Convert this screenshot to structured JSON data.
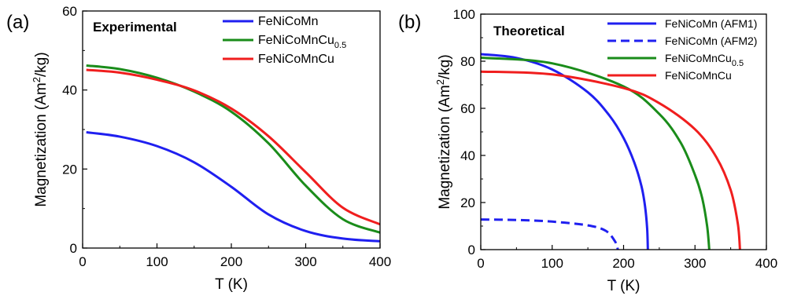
{
  "chart_data": [
    {
      "type": "line",
      "panel_label": "(a)",
      "title": "Experimental",
      "xlabel": "T (K)",
      "ylabel": "Magnetization (Am²/kg)",
      "xlim": [
        0,
        400
      ],
      "ylim": [
        0,
        60
      ],
      "xticks": [
        0,
        100,
        200,
        300,
        400
      ],
      "yticks": [
        0,
        20,
        40,
        60
      ],
      "grid": false,
      "legend_position": "top-right",
      "series": [
        {
          "name": "FeNiCoMn",
          "name_main": "FeNiCoMn",
          "name_sub": "",
          "color": "#1f1ff0",
          "style": "solid",
          "x": [
            5,
            50,
            100,
            150,
            200,
            250,
            300,
            350,
            400
          ],
          "y": [
            29.3,
            28.2,
            25.8,
            21.7,
            15.5,
            8.5,
            4.3,
            2.4,
            1.7
          ]
        },
        {
          "name": "FeNiCoMnCu0.5",
          "name_main": "FeNiCoMnCu",
          "name_sub": "0.5",
          "color": "#1a8c1a",
          "style": "solid",
          "x": [
            5,
            50,
            100,
            150,
            200,
            250,
            300,
            350,
            400
          ],
          "y": [
            46.2,
            45.3,
            43.1,
            39.6,
            34.5,
            26.5,
            15.8,
            7.3,
            3.9
          ]
        },
        {
          "name": "FeNiCoMnCu",
          "name_main": "FeNiCoMnCu",
          "name_sub": "",
          "color": "#f01e1e",
          "style": "solid",
          "x": [
            5,
            50,
            100,
            150,
            200,
            250,
            300,
            350,
            400
          ],
          "y": [
            45.1,
            44.4,
            42.6,
            39.9,
            35.3,
            28.3,
            19.2,
            10.2,
            6.0
          ]
        }
      ]
    },
    {
      "type": "line",
      "panel_label": "(b)",
      "title": "Theoretical",
      "xlabel": "T (K)",
      "ylabel": "Magnetization (Am²/kg)",
      "xlim": [
        0,
        400
      ],
      "ylim": [
        0,
        100
      ],
      "xticks": [
        0,
        100,
        200,
        300,
        400
      ],
      "yticks": [
        0,
        20,
        40,
        60,
        80,
        100
      ],
      "grid": false,
      "legend_position": "top-right",
      "series": [
        {
          "name": "FeNiCoMn (AFM1)",
          "name_main": "FeNiCoMn (AFM1)",
          "name_sub": "",
          "color": "#1f1ff0",
          "style": "solid",
          "x": [
            0,
            50,
            100,
            150,
            180,
            200,
            215,
            225,
            230,
            233,
            234
          ],
          "y": [
            83,
            81.4,
            76.5,
            66.8,
            57,
            47.4,
            37,
            27,
            18.5,
            9,
            0
          ]
        },
        {
          "name": "FeNiCoMn (AFM2)",
          "name_main": "FeNiCoMn (AFM2)",
          "name_sub": "",
          "color": "#1f1ff0",
          "style": "dashed",
          "x": [
            0,
            50,
            100,
            150,
            175,
            188,
            192
          ],
          "y": [
            12.8,
            12.6,
            11.9,
            10.3,
            8.0,
            3.5,
            0
          ]
        },
        {
          "name": "FeNiCoMnCu0.5",
          "name_main": "FeNiCoMnCu",
          "name_sub": "0.5",
          "color": "#1a8c1a",
          "style": "solid",
          "x": [
            0,
            100,
            200,
            250,
            280,
            300,
            310,
            317,
            320
          ],
          "y": [
            81.5,
            79.1,
            69.3,
            57.6,
            45.4,
            31.7,
            22,
            10,
            0
          ]
        },
        {
          "name": "FeNiCoMnCu",
          "name_main": "FeNiCoMnCu",
          "name_sub": "",
          "color": "#f01e1e",
          "style": "solid",
          "x": [
            0,
            100,
            200,
            250,
            300,
            330,
            350,
            360,
            363
          ],
          "y": [
            75.6,
            74.4,
            68.6,
            62.2,
            51.1,
            39.2,
            25.3,
            11,
            0
          ]
        }
      ]
    }
  ]
}
